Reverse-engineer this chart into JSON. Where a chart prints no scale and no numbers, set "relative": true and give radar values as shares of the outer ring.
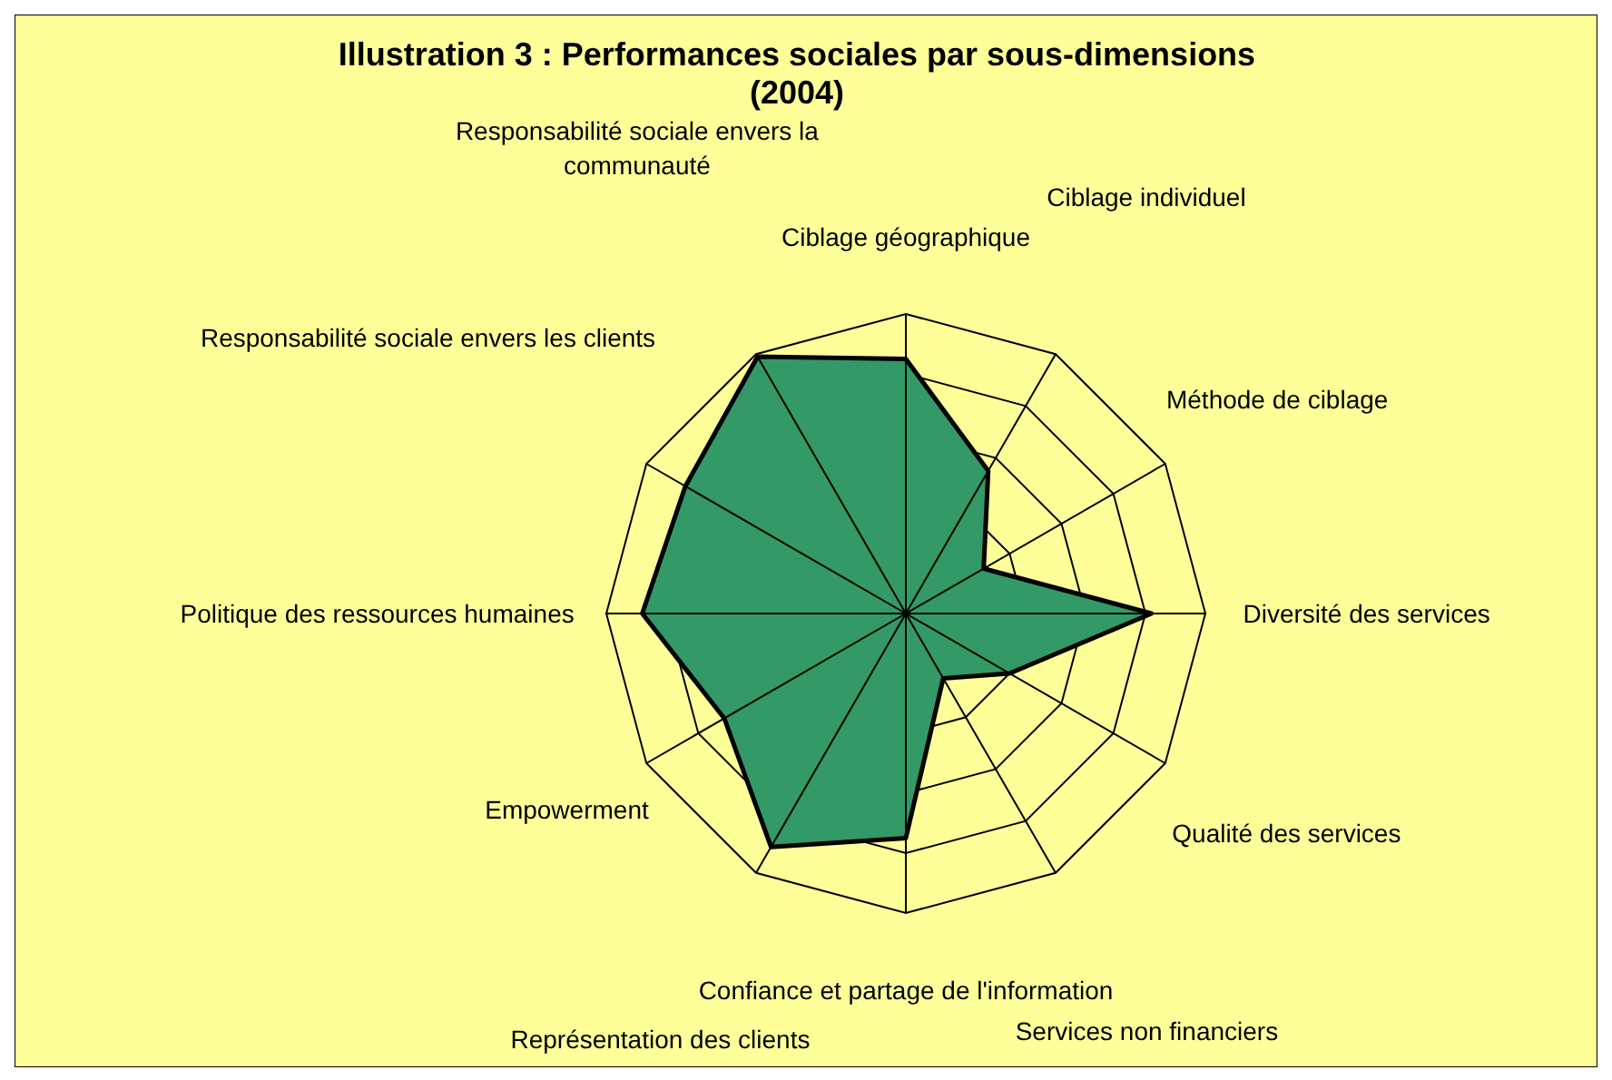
{
  "chart_data": {
    "type": "radar",
    "title": "Illustration 3 : Performances sociales par sous-dimensions (2004)",
    "relative": true,
    "grid": true,
    "legend": false,
    "categories": [
      "Ciblage géographique",
      "Ciblage individuel",
      "Méthode de ciblage",
      "Diversité des services",
      "Qualité des services",
      "Services non financiers",
      "Confiance et partage de l'information",
      "Représentation des clients",
      "Empowerment",
      "Politique des ressources humaines",
      "Responsabilité sociale envers les clients",
      "Responsabilité sociale envers la communauté"
    ],
    "series": [
      {
        "color": "#339966",
        "values": [
          0.85,
          0.55,
          0.3,
          0.82,
          0.4,
          0.25,
          0.75,
          0.9,
          0.7,
          0.88,
          0.85,
          0.99
        ]
      }
    ]
  }
}
